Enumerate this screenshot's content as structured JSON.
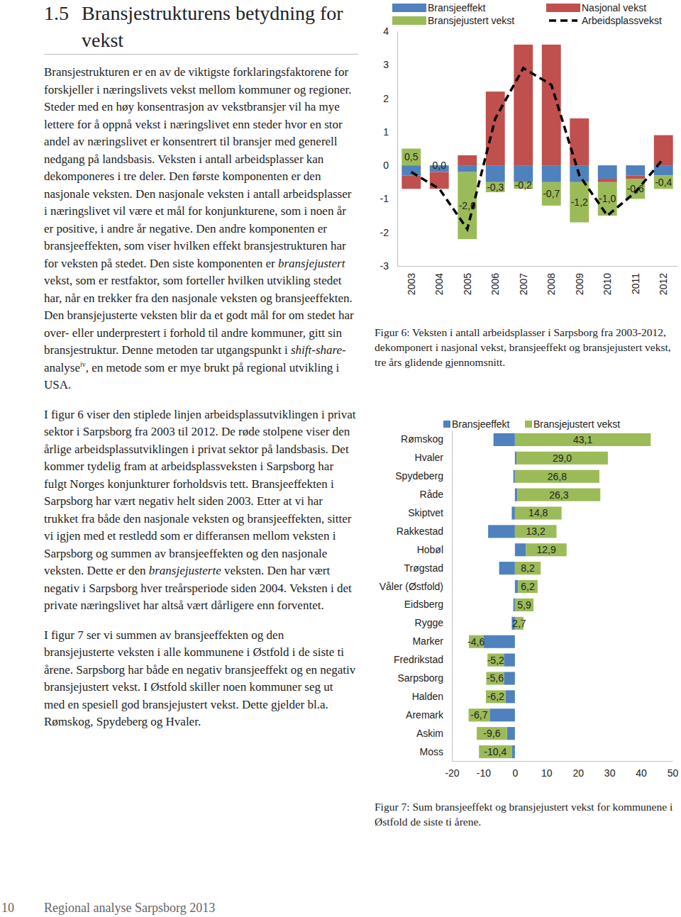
{
  "heading": {
    "number": "1.5",
    "title": "Bransjestrukturens betydning for vekst"
  },
  "paragraphs": [
    [
      "Bransjestrukturen er en av de viktigste forklaringsfaktorene for forskjeller i næringslivets vekst mellom kommuner og regioner. Steder med en høy konsentrasjon av vekstbransjer vil ha mye lettere for å oppnå vekst i næringslivet enn steder hvor en stor andel av næringslivet er konsentrert til bransjer med generell nedgang på landsbasis. Veksten i antall arbeidsplasser kan dekomponeres i tre deler. Den første komponenten er den nasjonale veksten. Den nasjonale veksten i antall arbeidsplasser i næringslivet vil være et mål for konjunkturene, som i noen år er positive, i andre år negative. Den andre komponenten er bransjeeffekten, som viser hvilken effekt bransjestrukturen har for veksten på stedet. Den siste komponenten er ",
      {
        "em": "bransjejustert"
      },
      " vekst, som er restfaktor, som forteller hvilken utvikling stedet har, når en trekker fra den nasjonale veksten og bransjeeffekten. Den bransjejusterte veksten blir da et godt mål for om stedet har over- eller underprestert i forhold til andre kommuner, gitt sin bransjestruktur. Denne metoden tar utgangspunkt i ",
      {
        "em": "shift-share"
      },
      "-analyse",
      {
        "sup": "iv"
      },
      ", en metode som er mye brukt på regional utvikling i USA."
    ],
    [
      "I figur 6 viser den stiplede linjen arbeidsplassutviklingen i privat sektor i Sarpsborg fra 2003 til 2012. De røde stolpene viser den årlige arbeidsplassutviklingen i privat sektor på landsbasis. Det kommer tydelig fram at arbeidsplassveksten i Sarpsborg har fulgt Norges konjunkturer forholdsvis tett. Bransjeeffekten i Sarpsborg har vært negativ helt siden 2003. Etter at vi har trukket fra både den nasjonale veksten og bransjeeffekten, sitter vi igjen med et restledd som er differansen mellom veksten i Sarpsborg og summen av bransjeeffekten og den nasjonale veksten. Dette er den ",
      {
        "em": "bransjejusterte"
      },
      " veksten. Den har vært negativ i Sarpsborg hver treårsperiode siden 2004. Veksten i det private næringslivet har altså vært dårligere enn forventet."
    ],
    [
      "I figur 7 ser vi summen av bransjeeffekten og den bransjejusterte veksten i alle kommunene i Østfold i de siste ti årene. Sarpsborg har både en negativ bransjeeffekt og en negativ bransjejustert vekst. I Østfold skiller noen kommuner seg ut med en spesiell god bransjejustert vekst. Dette gjelder bl.a. Rømskog, Spydeberg og Hvaler."
    ]
  ],
  "footer": {
    "page": "10",
    "text": "Regional analyse Sarpsborg 2013"
  },
  "chart_data": [
    {
      "type": "bar",
      "stacked": true,
      "grid": false,
      "legend": "top",
      "title": "Figur 6: Veksten i antall arbeidsplasser i Sarpsborg fra 2003-2012, dekomponert i nasjonal vekst, bransjeeffekt og bransjejustert vekst, tre års glidende gjennomsnitt.",
      "categories": [
        "2003",
        "2004",
        "2005",
        "2006",
        "2007",
        "2008",
        "2009",
        "2010",
        "2011",
        "2012"
      ],
      "ylim": [
        -3,
        4
      ],
      "yticks": [
        -3,
        -2,
        -1,
        0,
        1,
        2,
        3,
        4
      ],
      "series": [
        {
          "name": "Bransjeeffekt",
          "type": "bar",
          "color": "#4f81bd",
          "values": [
            -0.3,
            -0.2,
            -0.2,
            -0.5,
            -0.5,
            -0.5,
            -0.5,
            -0.4,
            -0.3,
            -0.3
          ]
        },
        {
          "name": "Nasjonal vekst",
          "type": "bar",
          "color": "#c0504d",
          "values": [
            -0.4,
            -0.5,
            0.3,
            2.2,
            3.6,
            3.6,
            1.4,
            -0.1,
            -0.1,
            0.9
          ]
        },
        {
          "name": "Bransjejustert vekst",
          "type": "bar",
          "color": "#9bbb59",
          "data_labels": true,
          "values": [
            0.5,
            0.0,
            -2.0,
            -0.3,
            -0.2,
            -0.7,
            -1.2,
            -1.0,
            -0.6,
            -0.4
          ],
          "value_labels": [
            "0,5",
            "0,0",
            "-2,0",
            "-0,3",
            "-0,2",
            "-0,7",
            "-1,2",
            "-1,0",
            "-0,6",
            "-0,4"
          ]
        },
        {
          "name": "Arbeidsplassvekst",
          "type": "line",
          "color": "#000000",
          "line_style": "dashed",
          "values": [
            -0.2,
            -0.7,
            -1.9,
            1.4,
            2.9,
            2.4,
            -0.3,
            -1.5,
            -0.8,
            0.2
          ]
        }
      ]
    },
    {
      "type": "bar",
      "orientation": "horizontal",
      "stacked": true,
      "grid": false,
      "legend": "top",
      "title": "Figur 7: Sum bransjeeffekt og bransjejustert vekst for kommunene i Østfold de siste ti årene.",
      "categories": [
        "Rømskog",
        "Hvaler",
        "Spydeberg",
        "Råde",
        "Skiptvet",
        "Rakkestad",
        "Hobøl",
        "Trøgstad",
        "Våler (Østfold)",
        "Eidsberg",
        "Rygge",
        "Marker",
        "Fredrikstad",
        "Sarpsborg",
        "Halden",
        "Aremark",
        "Askim",
        "Moss"
      ],
      "xlim": [
        -20,
        50
      ],
      "xticks": [
        -20,
        -10,
        0,
        10,
        20,
        30,
        40,
        50
      ],
      "series": [
        {
          "name": "Bransjeeffekt",
          "color": "#4f81bd",
          "values": [
            -6.8,
            0.5,
            -0.5,
            0.8,
            -1.0,
            -8.5,
            3.5,
            -5.0,
            1.0,
            -0.5,
            -1.0,
            -10.0,
            -3.5,
            -3.5,
            -3.0,
            -8.0,
            -2.5,
            -1.0
          ]
        },
        {
          "name": "Bransjejustert vekst",
          "color": "#9bbb59",
          "data_labels": true,
          "values": [
            43.1,
            29.0,
            26.8,
            26.3,
            14.8,
            13.2,
            12.9,
            8.2,
            6.2,
            5.9,
            2.7,
            -4.6,
            -5.2,
            -5.6,
            -6.2,
            -6.7,
            -9.6,
            -10.4
          ],
          "value_labels": [
            "43,1",
            "29,0",
            "26,8",
            "26,3",
            "14,8",
            "13,2",
            "12,9",
            "8,2",
            "6,2",
            "5,9",
            "2,7",
            "-4,6",
            "-5,2",
            "-5,6",
            "-6,2",
            "-6,7",
            "-9,6",
            "-10,4"
          ]
        }
      ]
    }
  ]
}
